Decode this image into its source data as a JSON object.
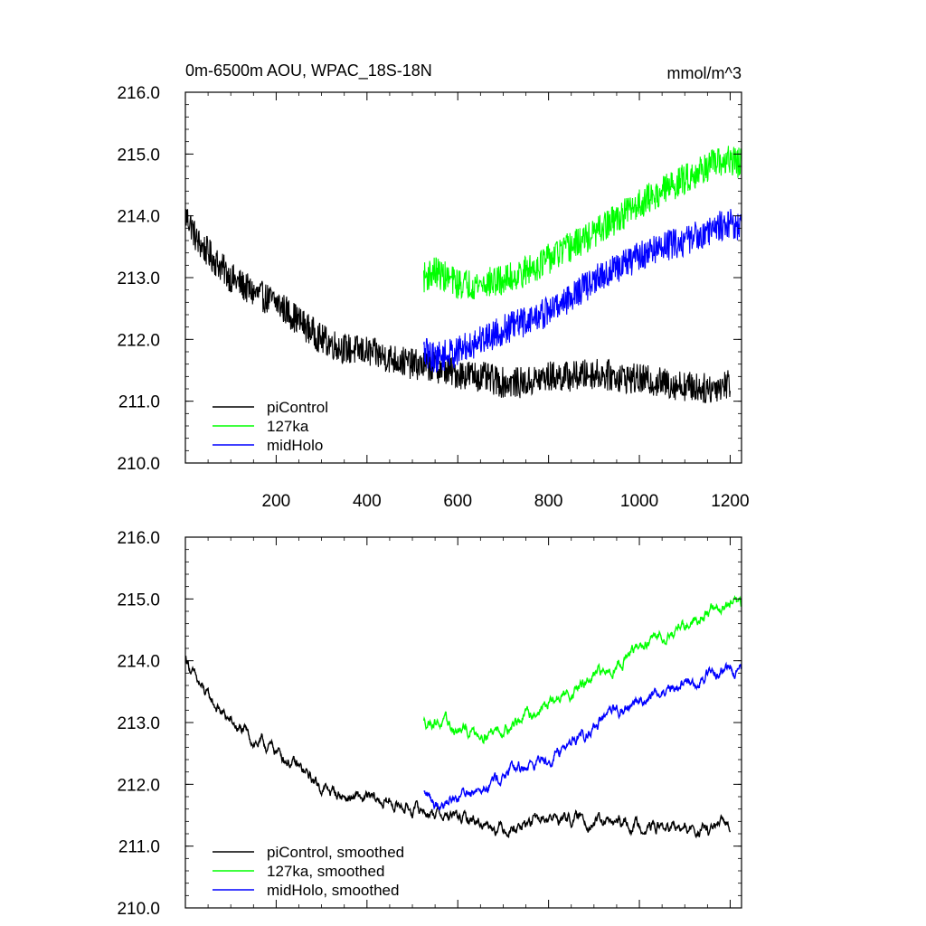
{
  "chart_data": [
    {
      "type": "line",
      "title": "0m-6500m AOU, WPAC_18S-18N",
      "units": "mmol/m^3",
      "xlim": [
        0,
        1225
      ],
      "ylim": [
        210.0,
        216.0
      ],
      "xticks": [
        200,
        400,
        600,
        800,
        1000,
        1200
      ],
      "yticks": [
        "210.0",
        "211.0",
        "212.0",
        "213.0",
        "214.0",
        "215.0",
        "216.0"
      ],
      "grid": false,
      "legend": "bottom-left",
      "series": [
        {
          "name": "piControl",
          "color": "#000000",
          "x": [
            1,
            10,
            25,
            50,
            75,
            100,
            150,
            200,
            250,
            300,
            350,
            400,
            450,
            500,
            550,
            600,
            650,
            700,
            750,
            800,
            850,
            900,
            950,
            1000,
            1050,
            1100,
            1150,
            1200
          ],
          "y": [
            214.0,
            213.9,
            213.6,
            213.4,
            213.2,
            213.0,
            212.75,
            212.6,
            212.3,
            212.0,
            211.85,
            211.8,
            211.7,
            211.6,
            211.55,
            211.45,
            211.4,
            211.3,
            211.3,
            211.4,
            211.4,
            211.45,
            211.4,
            211.35,
            211.3,
            211.25,
            211.2,
            211.3
          ],
          "noise": 0.28
        },
        {
          "name": "127ka",
          "color": "#00ff00",
          "x": [
            525,
            550,
            600,
            650,
            700,
            750,
            800,
            850,
            900,
            950,
            1000,
            1050,
            1100,
            1150,
            1200,
            1225
          ],
          "y": [
            213.0,
            213.1,
            212.9,
            212.9,
            212.95,
            213.1,
            213.3,
            213.5,
            213.7,
            213.95,
            214.2,
            214.4,
            214.6,
            214.8,
            214.9,
            214.85
          ],
          "noise": 0.28
        },
        {
          "name": "midHolo",
          "color": "#0000ff",
          "x": [
            525,
            550,
            600,
            650,
            700,
            750,
            800,
            850,
            900,
            950,
            1000,
            1050,
            1100,
            1150,
            1200,
            1225
          ],
          "y": [
            211.8,
            211.7,
            211.8,
            212.0,
            212.15,
            212.3,
            212.45,
            212.7,
            212.95,
            213.15,
            213.35,
            213.5,
            213.6,
            213.75,
            213.9,
            213.8
          ],
          "noise": 0.28
        }
      ]
    },
    {
      "type": "line",
      "xlim": [
        0,
        1225
      ],
      "ylim": [
        210.0,
        216.0
      ],
      "yticks": [
        "210.0",
        "211.0",
        "212.0",
        "213.0",
        "214.0",
        "215.0",
        "216.0"
      ],
      "grid": false,
      "legend": "bottom-left",
      "series": [
        {
          "name": "piControl, smoothed",
          "color": "#000000",
          "x": [
            1,
            10,
            25,
            50,
            75,
            100,
            150,
            200,
            250,
            300,
            350,
            400,
            450,
            500,
            550,
            600,
            650,
            700,
            750,
            800,
            850,
            900,
            950,
            1000,
            1050,
            1100,
            1150,
            1200
          ],
          "y": [
            214.05,
            213.9,
            213.65,
            213.4,
            213.2,
            213.0,
            212.7,
            212.55,
            212.25,
            211.95,
            211.8,
            211.75,
            211.7,
            211.6,
            211.55,
            211.45,
            211.4,
            211.3,
            211.35,
            211.45,
            211.45,
            211.4,
            211.35,
            211.35,
            211.3,
            211.25,
            211.25,
            211.35
          ],
          "noise": 0.1
        },
        {
          "name": "127ka, smoothed",
          "color": "#00ff00",
          "x": [
            525,
            550,
            600,
            650,
            700,
            750,
            800,
            850,
            900,
            950,
            1000,
            1050,
            1100,
            1150,
            1200,
            1225
          ],
          "y": [
            213.0,
            213.05,
            212.85,
            212.85,
            212.9,
            213.1,
            213.3,
            213.5,
            213.7,
            213.95,
            214.2,
            214.4,
            214.6,
            214.8,
            214.9,
            214.85
          ],
          "noise": 0.1
        },
        {
          "name": "midHolo, smoothed",
          "color": "#0000ff",
          "x": [
            525,
            550,
            600,
            650,
            700,
            750,
            800,
            850,
            900,
            950,
            1000,
            1050,
            1100,
            1150,
            1200,
            1225
          ],
          "y": [
            211.85,
            211.7,
            211.8,
            212.0,
            212.15,
            212.3,
            212.45,
            212.7,
            212.95,
            213.15,
            213.35,
            213.5,
            213.6,
            213.75,
            213.9,
            213.8
          ],
          "noise": 0.1
        }
      ]
    }
  ]
}
